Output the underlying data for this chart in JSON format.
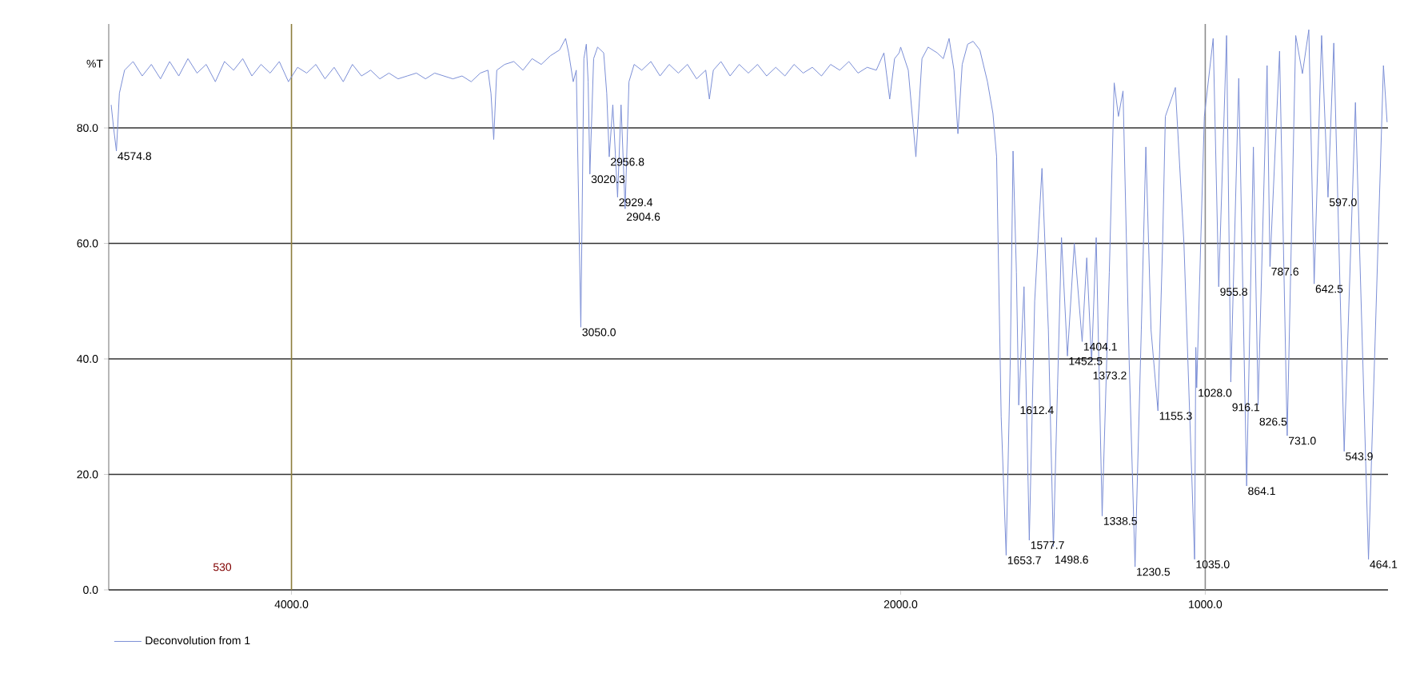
{
  "chart_data": {
    "type": "line",
    "ylabel": "%T",
    "xlim": [
      4600,
      400
    ],
    "ylim": [
      0,
      98
    ],
    "xticks": [
      {
        "value": 4000,
        "label": "4000.0"
      },
      {
        "value": 2000,
        "label": "2000.0"
      },
      {
        "value": 1000,
        "label": "1000.0"
      }
    ],
    "yticks": [
      {
        "value": 0,
        "label": "0.0"
      },
      {
        "value": 20,
        "label": "20.0"
      },
      {
        "value": 40,
        "label": "40.0"
      },
      {
        "value": 60,
        "label": "60.0"
      },
      {
        "value": 80,
        "label": "80.0"
      }
    ],
    "grid": "y",
    "legend": "bottom left",
    "marker": "none",
    "line_style": "solid",
    "ref_lines": [
      {
        "axis": "x",
        "value": 4000,
        "color": "#8c7d3c"
      },
      {
        "axis": "x",
        "value": 1000,
        "color": "#8c8c8c"
      }
    ],
    "series": [
      {
        "name": "Deconvolution from 1",
        "color": "#7b8fd6",
        "x": [
          4592,
          4584,
          4574.8,
          4565,
          4548,
          4520,
          4490,
          4460,
          4430,
          4400,
          4370,
          4340,
          4310,
          4280,
          4250,
          4220,
          4190,
          4160,
          4130,
          4100,
          4070,
          4040,
          4010,
          3980,
          3950,
          3920,
          3890,
          3860,
          3830,
          3800,
          3770,
          3740,
          3710,
          3680,
          3650,
          3620,
          3590,
          3560,
          3530,
          3500,
          3470,
          3440,
          3410,
          3380,
          3355,
          3345,
          3336,
          3326,
          3300,
          3270,
          3240,
          3210,
          3180,
          3150,
          3120,
          3100,
          3090,
          3075,
          3065,
          3050,
          3040,
          3032,
          3026,
          3020.3,
          3008,
          2995,
          2975,
          2965,
          2956.8,
          2945,
          2929.4,
          2918,
          2904.6,
          2892,
          2875,
          2850,
          2820,
          2790,
          2760,
          2730,
          2700,
          2670,
          2640,
          2628,
          2615,
          2590,
          2560,
          2530,
          2500,
          2470,
          2440,
          2410,
          2380,
          2350,
          2320,
          2290,
          2260,
          2230,
          2200,
          2170,
          2140,
          2110,
          2080,
          2055,
          2036,
          2020,
          2005,
          2000,
          1975,
          1950,
          1930,
          1910,
          1880,
          1860,
          1841,
          1825,
          1812,
          1798,
          1780,
          1762,
          1740,
          1715,
          1697,
          1685,
          1670,
          1653.7,
          1640,
          1631,
          1620,
          1612.4,
          1595,
          1577.7,
          1560,
          1536,
          1515,
          1498.6,
          1485,
          1472,
          1452.5,
          1430,
          1404.1,
          1389,
          1373.2,
          1358,
          1338.5,
          1315,
          1299,
          1285,
          1270,
          1250,
          1230.5,
          1210,
          1195,
          1178,
          1155.3,
          1140,
          1131,
          1098,
          1070,
          1035,
          1031,
          1028,
          1015,
          1003,
          974,
          955.8,
          930,
          916.1,
          890,
          864.1,
          842,
          826.5,
          797,
          787.6,
          756,
          731,
          703,
          681,
          660,
          642.5,
          618,
          597,
          578,
          543.9,
          507,
          464.1,
          415,
          403
        ],
        "values": [
          84,
          80,
          76,
          86,
          90,
          91.5,
          89,
          91,
          88.5,
          91.5,
          89,
          92,
          89.5,
          91,
          88,
          91.5,
          90,
          92,
          89,
          91,
          89.5,
          91.5,
          88,
          90.5,
          89.5,
          91,
          88.5,
          90.5,
          88,
          91,
          89,
          90,
          88.5,
          89.5,
          88.5,
          89,
          89.5,
          88.5,
          89.5,
          89,
          88.5,
          89,
          88,
          89.5,
          90,
          86,
          78,
          90,
          91,
          91.5,
          90,
          92,
          91,
          92.5,
          93.5,
          95.5,
          93,
          88,
          90,
          45.5,
          92,
          94.5,
          88,
          72,
          92,
          94,
          93,
          86,
          75,
          84,
          68,
          84,
          66,
          88,
          91,
          90,
          91.5,
          89,
          91,
          89.5,
          91,
          88.5,
          90,
          85,
          90,
          91.5,
          89,
          91,
          89.5,
          91,
          89,
          90.5,
          89,
          91,
          89.5,
          90.5,
          89,
          91,
          90,
          91.5,
          89.5,
          90.5,
          90,
          93,
          85,
          92,
          93,
          94,
          90,
          75,
          92,
          94,
          93,
          92,
          95.5,
          90,
          79,
          91,
          94.5,
          95,
          93.5,
          88,
          82.5,
          75,
          30,
          6,
          40,
          76,
          55,
          32,
          52.5,
          8.6,
          50,
          73,
          45,
          7.5,
          35,
          61,
          40.5,
          60,
          43,
          57.5,
          39.5,
          61,
          12.8,
          55,
          87.8,
          82,
          86.4,
          40,
          4,
          45,
          76.7,
          45,
          31,
          60,
          82,
          87,
          60,
          5.3,
          42,
          35,
          60,
          82,
          95.5,
          52.5,
          96,
          36,
          88.6,
          18,
          76.7,
          32,
          90.8,
          56,
          93.3,
          26.7,
          96,
          89.4,
          97,
          53,
          96,
          68,
          94.7,
          24,
          84.4,
          5.3,
          90.8,
          81
        ]
      }
    ],
    "annotations": [
      "530",
      {
        "text": "4574.8",
        "x": 4574.8,
        "y": 76
      },
      {
        "text": "3050.0",
        "x": 3050,
        "y": 45.5
      },
      {
        "text": "3020.3",
        "x": 3020.3,
        "y": 72
      },
      {
        "text": "2956.8",
        "x": 2956.8,
        "y": 75
      },
      {
        "text": "2929.4",
        "x": 2929.4,
        "y": 68
      },
      {
        "text": "2904.6",
        "x": 2904.6,
        "y": 66
      },
      {
        "text": "1653.7",
        "x": 1653.7,
        "y": 6
      },
      {
        "text": "1612.4",
        "x": 1612.4,
        "y": 32
      },
      {
        "text": "1577.7",
        "x": 1577.7,
        "y": 8.6
      },
      {
        "text": "1498.6",
        "x": 1498.6,
        "y": 7.5
      },
      {
        "text": "1452.5",
        "x": 1452.5,
        "y": 40.5
      },
      {
        "text": "1404.1",
        "x": 1404.1,
        "y": 43
      },
      {
        "text": "1373.2",
        "x": 1373.2,
        "y": 39.5
      },
      {
        "text": "1338.5",
        "x": 1338.5,
        "y": 12.8
      },
      {
        "text": "1230.5",
        "x": 1230.5,
        "y": 4
      },
      {
        "text": "1155.3",
        "x": 1155.3,
        "y": 31
      },
      {
        "text": "1035.0",
        "x": 1035,
        "y": 5.3
      },
      {
        "text": "1028.0",
        "x": 1028,
        "y": 35
      },
      {
        "text": "955.8",
        "x": 955.8,
        "y": 52.5
      },
      {
        "text": "916.1",
        "x": 916.1,
        "y": 36
      },
      {
        "text": "864.1",
        "x": 864.1,
        "y": 18
      },
      {
        "text": "826.5",
        "x": 826.5,
        "y": 32
      },
      {
        "text": "787.6",
        "x": 787.6,
        "y": 56
      },
      {
        "text": "731.0",
        "x": 731,
        "y": 26.7
      },
      {
        "text": "642.5",
        "x": 642.5,
        "y": 53
      },
      {
        "text": "597.0",
        "x": 597,
        "y": 68
      },
      {
        "text": "543.9",
        "x": 543.9,
        "y": 24
      },
      {
        "text": "464.1",
        "x": 464.1,
        "y": 5.3
      }
    ]
  }
}
